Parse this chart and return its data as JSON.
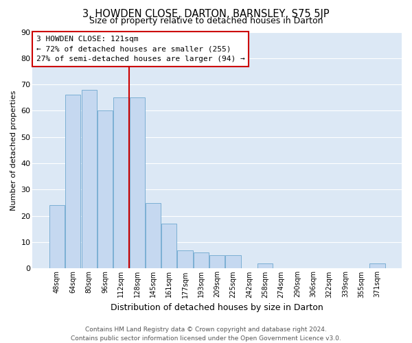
{
  "title": "3, HOWDEN CLOSE, DARTON, BARNSLEY, S75 5JP",
  "subtitle": "Size of property relative to detached houses in Darton",
  "xlabel": "Distribution of detached houses by size in Darton",
  "ylabel": "Number of detached properties",
  "bin_labels": [
    "48sqm",
    "64sqm",
    "80sqm",
    "96sqm",
    "112sqm",
    "128sqm",
    "145sqm",
    "161sqm",
    "177sqm",
    "193sqm",
    "209sqm",
    "225sqm",
    "242sqm",
    "258sqm",
    "274sqm",
    "290sqm",
    "306sqm",
    "322sqm",
    "339sqm",
    "355sqm",
    "371sqm"
  ],
  "bar_values": [
    24,
    66,
    68,
    60,
    65,
    65,
    25,
    17,
    7,
    6,
    5,
    5,
    0,
    2,
    0,
    0,
    0,
    0,
    0,
    0,
    2
  ],
  "bar_color": "#c5d8f0",
  "bar_edge_color": "#7bafd4",
  "vline_x": 4.5,
  "vline_color": "#cc0000",
  "ylim": [
    0,
    90
  ],
  "yticks": [
    0,
    10,
    20,
    30,
    40,
    50,
    60,
    70,
    80,
    90
  ],
  "annotation_lines": [
    "3 HOWDEN CLOSE: 121sqm",
    "← 72% of detached houses are smaller (255)",
    "27% of semi-detached houses are larger (94) →"
  ],
  "annotation_box_color": "#ffffff",
  "annotation_box_edge": "#cc0000",
  "footer_lines": [
    "Contains HM Land Registry data © Crown copyright and database right 2024.",
    "Contains public sector information licensed under the Open Government Licence v3.0."
  ],
  "fig_background": "#ffffff",
  "plot_background": "#dce8f5",
  "grid_color": "#ffffff"
}
